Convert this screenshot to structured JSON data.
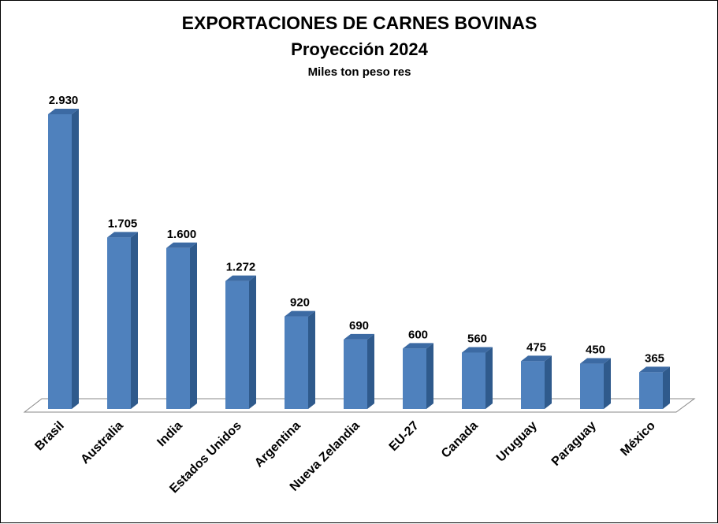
{
  "chart_data": {
    "type": "bar",
    "title": "EXPORTACIONES DE CARNES BOVINAS",
    "subtitle": "Proyección 2024",
    "unit_label": "Miles ton peso res",
    "categories": [
      "Brasil",
      "Australia",
      "India",
      "Estados Unidos",
      "Argentina",
      "Nueva Zelandia",
      "EU-27",
      "Canada",
      "Uruguay",
      "Paraguay",
      "México"
    ],
    "values": [
      2930,
      1705,
      1600,
      1272,
      920,
      690,
      600,
      560,
      475,
      450,
      365
    ],
    "value_labels": [
      "2.930",
      "1.705",
      "1.600",
      "1.272",
      "920",
      "690",
      "600",
      "560",
      "475",
      "450",
      "365"
    ],
    "ylim": [
      0,
      2930
    ],
    "grid": false,
    "legend": "none",
    "bar_color": "#4F81BD",
    "bar_side_color": "#2F5A8C",
    "bar_top_color": "#3C6AA3"
  }
}
